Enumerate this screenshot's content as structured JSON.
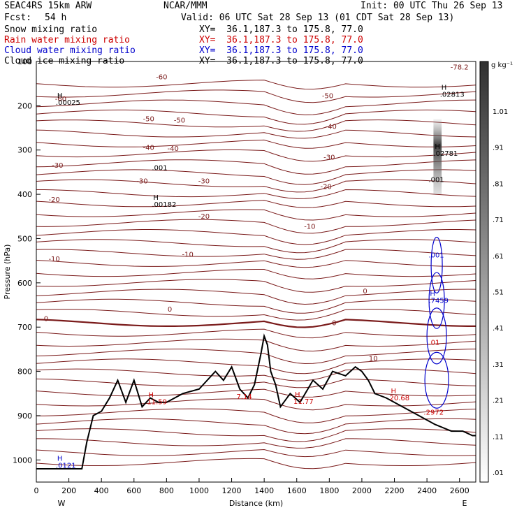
{
  "header": {
    "model": "SEAC4RS 15km ARW",
    "org": "NCAR/MMM",
    "init": "Init: 00 UTC Thu 26 Sep 13",
    "fcst_label": "Fcst:",
    "fcst_value": "54 h",
    "valid": "Valid: 06 UTC Sat 28 Sep 13 (01 CDT Sat 28 Sep 13)",
    "fields": [
      {
        "name": "Snow mixing ratio",
        "xy": "XY=  36.1,187.3 to 175.8, 77.0",
        "color": "#000000"
      },
      {
        "name": "Rain water mixing ratio",
        "xy": "XY=  36.1,187.3 to 175.8, 77.0",
        "color": "#cc0000"
      },
      {
        "name": "Cloud water mixing ratio",
        "xy": "XY=  36.1,187.3 to 175.8, 77.0",
        "color": "#0000cc"
      },
      {
        "name": "Cloud ice mixing ratio",
        "xy": "XY=  36.1,187.3 to 175.8, 77.0",
        "color": "#000000"
      }
    ]
  },
  "chart_data": {
    "type": "cross-section contour",
    "xlabel": "Distance (km)",
    "ylabel": "Pressure (hPa)",
    "xlim": [
      0,
      2700
    ],
    "ylim": [
      1050,
      100
    ],
    "xticks": [
      "0",
      "200",
      "400",
      "600",
      "800",
      "1000",
      "1200",
      "1400",
      "1600",
      "1800",
      "2000",
      "2200",
      "2400",
      "2600"
    ],
    "yticks": [
      "100",
      "200",
      "300",
      "400",
      "500",
      "600",
      "700",
      "800",
      "900",
      "1000"
    ],
    "x_end_labels": {
      "left": "W",
      "right": "E"
    },
    "colorbar": {
      "unit": "g kg⁻¹",
      "labels": [
        "1.01",
        ".91",
        ".81",
        ".71",
        ".61",
        ".51",
        ".41",
        ".31",
        ".21",
        ".11",
        ".01"
      ]
    },
    "isotherm_labels": [
      {
        "text": "-60",
        "x": 770,
        "p": 140
      },
      {
        "text": "-60",
        "x": 150,
        "p": 190
      },
      {
        "text": "-50",
        "x": 1790,
        "p": 183
      },
      {
        "text": "-50",
        "x": 690,
        "p": 235
      },
      {
        "text": "-50",
        "x": 880,
        "p": 238
      },
      {
        "text": "-40",
        "x": 1810,
        "p": 252
      },
      {
        "text": "-40",
        "x": 690,
        "p": 300
      },
      {
        "text": "-40",
        "x": 840,
        "p": 302
      },
      {
        "text": "-30",
        "x": 1800,
        "p": 322
      },
      {
        "text": "-30",
        "x": 130,
        "p": 340
      },
      {
        "text": "-30",
        "x": 650,
        "p": 375
      },
      {
        "text": "-30",
        "x": 1030,
        "p": 375
      },
      {
        "text": "-20",
        "x": 1780,
        "p": 388
      },
      {
        "text": "-20",
        "x": 110,
        "p": 417
      },
      {
        "text": "-20",
        "x": 1030,
        "p": 455
      },
      {
        "text": "-10",
        "x": 1680,
        "p": 478
      },
      {
        "text": "-10",
        "x": 110,
        "p": 551
      },
      {
        "text": "-10",
        "x": 930,
        "p": 541
      },
      {
        "text": "0",
        "x": 2020,
        "p": 624
      },
      {
        "text": "0",
        "x": 60,
        "p": 686
      },
      {
        "text": "0",
        "x": 820,
        "p": 665
      },
      {
        "text": "0",
        "x": 1830,
        "p": 696
      },
      {
        "text": "10",
        "x": 2070,
        "p": 776
      },
      {
        "text": "-78.2",
        "x": 2600,
        "p": 118
      }
    ],
    "maxima": [
      {
        "mark": "H",
        "value": ".00025",
        "x": 180,
        "p": 198,
        "color": "#000000"
      },
      {
        "mark": "H",
        "value": ".02813",
        "x": 2540,
        "p": 180,
        "color": "#000000"
      },
      {
        "mark": "H",
        "value": ".02781",
        "x": 2500,
        "p": 313,
        "color": "#000000"
      },
      {
        "mark": "",
        "value": ".001",
        "x": 770,
        "p": 345,
        "color": "#000000"
      },
      {
        "mark": "H",
        "value": ".00182",
        "x": 770,
        "p": 428,
        "color": "#000000"
      },
      {
        "mark": "",
        "value": ".001",
        "x": 2470,
        "p": 372,
        "color": "#000000"
      },
      {
        "mark": "",
        "value": ".001",
        "x": 2470,
        "p": 543,
        "color": "#0000cc"
      },
      {
        "mark": "H",
        "value": ".7459",
        "x": 2470,
        "p": 645,
        "color": "#0000cc"
      },
      {
        "mark": "",
        "value": ".01",
        "x": 2470,
        "p": 740,
        "color": "#cc0000"
      },
      {
        "mark": "H",
        "value": "11.59",
        "x": 740,
        "p": 874,
        "color": "#cc0000"
      },
      {
        "mark": "",
        "value": "7.14",
        "x": 1290,
        "p": 862,
        "color": "#cc0000"
      },
      {
        "mark": "H",
        "value": "11.77",
        "x": 1640,
        "p": 873,
        "color": "#cc0000"
      },
      {
        "mark": "H",
        "value": "20.68",
        "x": 2230,
        "p": 865,
        "color": "#cc0000"
      },
      {
        "mark": "",
        "value": ".2972",
        "x": 2440,
        "p": 898,
        "color": "#cc0000"
      },
      {
        "mark": "H",
        "value": ".0121",
        "x": 180,
        "p": 1018,
        "color": "#0000cc"
      }
    ],
    "terrain": {
      "x": [
        0,
        150,
        280,
        310,
        350,
        400,
        450,
        500,
        550,
        600,
        650,
        700,
        750,
        800,
        850,
        900,
        1000,
        1100,
        1150,
        1200,
        1250,
        1300,
        1340,
        1380,
        1400,
        1420,
        1440,
        1470,
        1500,
        1560,
        1620,
        1700,
        1760,
        1820,
        1900,
        1960,
        2000,
        2040,
        2080,
        2150,
        2250,
        2350,
        2450,
        2550,
        2620,
        2680,
        2700
      ],
      "p": [
        1020,
        1020,
        1020,
        960,
        900,
        890,
        860,
        820,
        870,
        820,
        880,
        860,
        870,
        870,
        860,
        850,
        840,
        800,
        820,
        790,
        840,
        860,
        830,
        760,
        720,
        740,
        800,
        830,
        880,
        850,
        870,
        820,
        840,
        800,
        810,
        790,
        800,
        820,
        850,
        860,
        880,
        900,
        920,
        935,
        935,
        945,
        945
      ]
    }
  }
}
